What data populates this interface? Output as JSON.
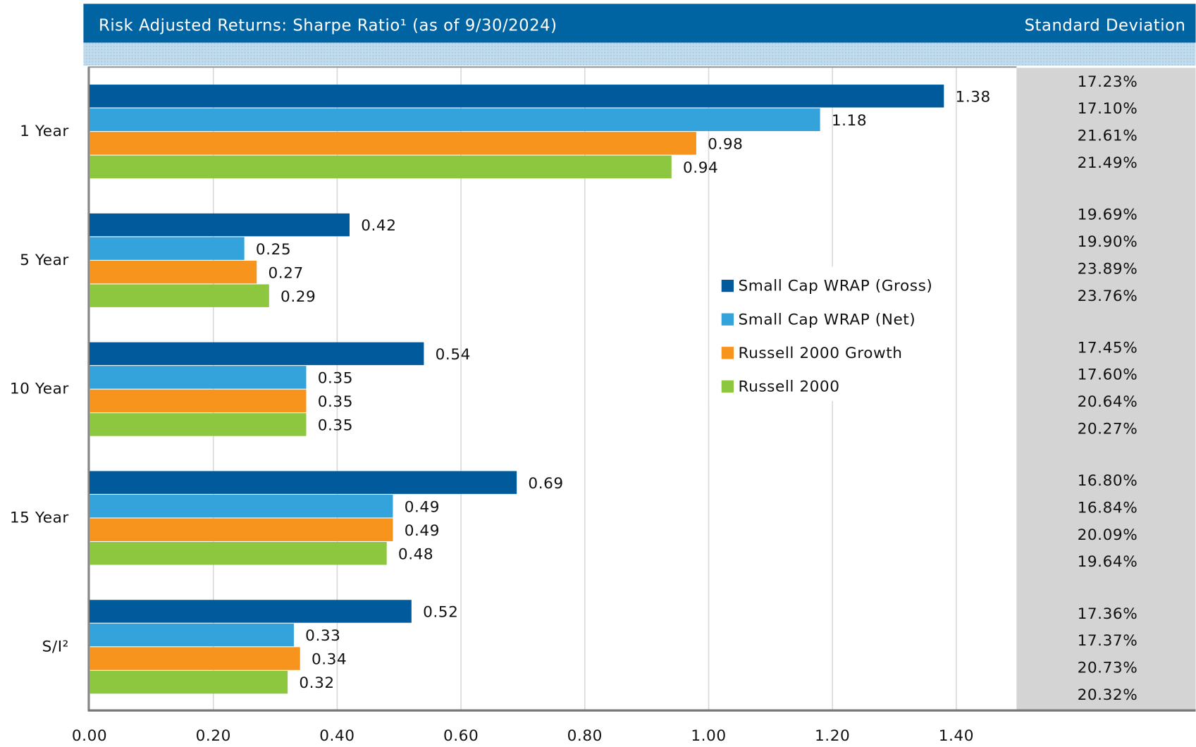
{
  "chart_data": {
    "type": "hbar",
    "title": "Risk Adjusted Returns: Sharpe Ratio¹ (as of 9/30/2024)",
    "side_header": "Standard Deviation",
    "categories": [
      "1 Year",
      "5 Year",
      "10 Year",
      "15 Year",
      "S/I²"
    ],
    "series": [
      {
        "name": "Small Cap WRAP (Gross)",
        "color": "#005a9c",
        "values": [
          1.38,
          0.42,
          0.54,
          0.69,
          0.52
        ],
        "std_dev": [
          "17.23%",
          "19.69%",
          "17.45%",
          "16.80%",
          "17.36%"
        ]
      },
      {
        "name": "Small Cap WRAP (Net)",
        "color": "#34a3dc",
        "values": [
          1.18,
          0.25,
          0.35,
          0.49,
          0.33
        ],
        "std_dev": [
          "17.10%",
          "19.90%",
          "17.60%",
          "16.84%",
          "17.37%"
        ]
      },
      {
        "name": "Russell 2000 Growth",
        "color": "#f7941d",
        "values": [
          0.98,
          0.27,
          0.35,
          0.49,
          0.34
        ],
        "std_dev": [
          "21.61%",
          "23.89%",
          "20.64%",
          "20.09%",
          "20.73%"
        ]
      },
      {
        "name": "Russell 2000",
        "color": "#8dc63f",
        "values": [
          0.94,
          0.29,
          0.35,
          0.48,
          0.32
        ],
        "std_dev": [
          "21.49%",
          "23.76%",
          "20.27%",
          "19.64%",
          "20.32%"
        ]
      }
    ],
    "xlim": [
      0,
      1.4
    ],
    "xticks": [
      {
        "value": 0,
        "label": "0.00"
      },
      {
        "value": 0.2,
        "label": "0.20"
      },
      {
        "value": 0.4,
        "label": "0.40"
      },
      {
        "value": 0.6,
        "label": "0.60"
      },
      {
        "value": 0.8,
        "label": "0.80"
      },
      {
        "value": 1,
        "label": "1.00"
      },
      {
        "value": 1.2,
        "label": "1.20"
      },
      {
        "value": 1.4,
        "label": "1.40"
      }
    ],
    "grid": true
  }
}
